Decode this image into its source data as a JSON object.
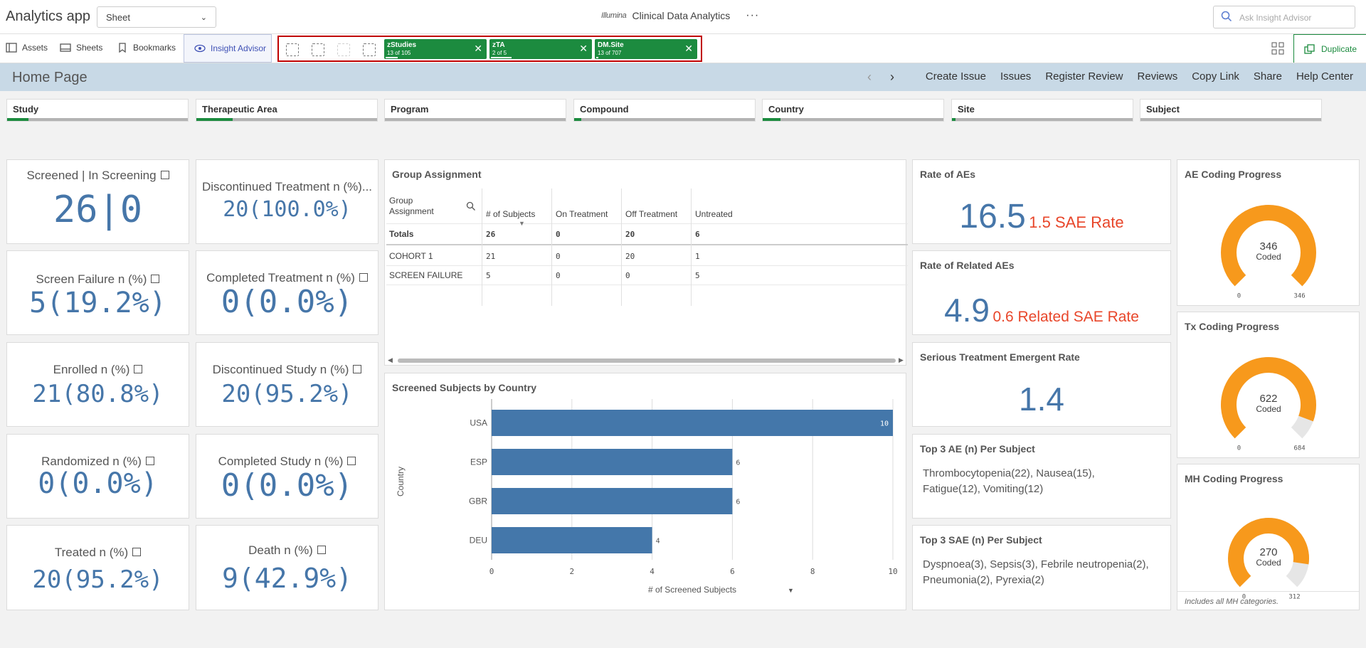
{
  "app": {
    "name": "Analytics app",
    "sheet_selector": "Sheet",
    "logo": "Illumina",
    "title": "Clinical Data Analytics",
    "more": "···",
    "ask_placeholder": "Ask Insight Advisor"
  },
  "toolbar": {
    "assets": "Assets",
    "sheets": "Sheets",
    "bookmarks": "Bookmarks",
    "insight": "Insight Advisor",
    "duplicate": "Duplicate"
  },
  "selections": [
    {
      "name": "zStudies",
      "count": "13 of 105",
      "fraction": 0.12
    },
    {
      "name": "zTA",
      "count": "2 of 5",
      "fraction": 0.2
    },
    {
      "name": "DM.Site",
      "count": "13 of 707",
      "fraction": 0.02
    }
  ],
  "header": {
    "page_title": "Home Page",
    "links": [
      "Create Issue",
      "Issues",
      "Register Review",
      "Reviews",
      "Copy Link",
      "Share",
      "Help Center"
    ]
  },
  "filters": [
    {
      "label": "Study",
      "fill": 0.12
    },
    {
      "label": "Therapeutic Area",
      "fill": 0.2
    },
    {
      "label": "Program",
      "fill": 0
    },
    {
      "label": "Compound",
      "fill": 0.04
    },
    {
      "label": "Country",
      "fill": 0.1
    },
    {
      "label": "Site",
      "fill": 0.02
    },
    {
      "label": "Subject",
      "fill": 0
    }
  ],
  "kpis": [
    {
      "title": "Screened | In Screening",
      "value": "26|0"
    },
    {
      "title": "Discontinued Treatment n (%)...",
      "value": "20(100.0%)"
    },
    {
      "title": "Screen Failure n (%)",
      "value": "5(19.2%)"
    },
    {
      "title": "Completed Treatment n (%)",
      "value": "0(0.0%)"
    },
    {
      "title": "Enrolled n (%)",
      "value": "21(80.8%)"
    },
    {
      "title": "Discontinued Study n (%)",
      "value": "20(95.2%)"
    },
    {
      "title": "Randomized n (%)",
      "value": "0(0.0%)"
    },
    {
      "title": "Completed Study n (%)",
      "value": "0(0.0%)"
    },
    {
      "title": "Treated n (%)",
      "value": "20(95.2%)"
    },
    {
      "title": "Death n (%)",
      "value": "9(42.9%)"
    }
  ],
  "group_table": {
    "title": "Group Assignment",
    "headers": [
      "Group\nAssignment",
      "# of Subjects",
      "On Treatment",
      "Off Treatment",
      "Untreated"
    ],
    "totals": [
      "Totals",
      "26",
      "0",
      "20",
      "6"
    ],
    "rows": [
      [
        "COHORT 1",
        "21",
        "0",
        "20",
        "1"
      ],
      [
        "SCREEN FAILURE",
        "5",
        "0",
        "0",
        "5"
      ]
    ]
  },
  "chart_data": {
    "type": "bar",
    "orientation": "horizontal",
    "title": "Screened Subjects by Country",
    "categories": [
      "USA",
      "ESP",
      "GBR",
      "DEU"
    ],
    "values": [
      10,
      6,
      6,
      4
    ],
    "xlabel": "# of Screened Subjects",
    "ylabel": "Country",
    "xlim": [
      0,
      10
    ],
    "xticks": [
      "0",
      "2",
      "4",
      "6",
      "8",
      "10"
    ],
    "grid": true,
    "color": "#4477aa"
  },
  "rates": {
    "ae": {
      "title": "Rate of AEs",
      "value": "16.5",
      "sub": "1.5 SAE Rate"
    },
    "related": {
      "title": "Rate of Related AEs",
      "value": "4.9",
      "sub": "0.6 Related SAE Rate"
    },
    "serious": {
      "title": "Serious Treatment Emergent Rate",
      "value": "1.4"
    }
  },
  "top_ae": {
    "title": "Top 3 AE (n) Per Subject",
    "text": "Thrombocytopenia(22), Nausea(15), Fatigue(12), Vomiting(12)"
  },
  "top_sae": {
    "title": "Top 3 SAE (n) Per Subject",
    "text": "Dyspnoea(3), Sepsis(3), Febrile neutropenia(2), Pneumonia(2), Pyrexia(2)"
  },
  "gauges": [
    {
      "title": "AE Coding Progress",
      "value": "346",
      "label": "Coded",
      "min": "0",
      "max": "346",
      "fraction": 1.0
    },
    {
      "title": "Tx Coding Progress",
      "value": "622",
      "label": "Coded",
      "min": "0",
      "max": "684",
      "fraction": 0.909
    },
    {
      "title": "MH Coding Progress",
      "value": "270",
      "label": "Coded",
      "min": "0",
      "max": "312",
      "fraction": 0.865,
      "footnote": "Includes all MH categories."
    }
  ],
  "colors": {
    "accent_green": "#1c8b3f",
    "kpi_blue": "#4676a9",
    "rate_red": "#e8462a",
    "gauge_orange": "#f7991c",
    "band": "#c8d9e6"
  }
}
